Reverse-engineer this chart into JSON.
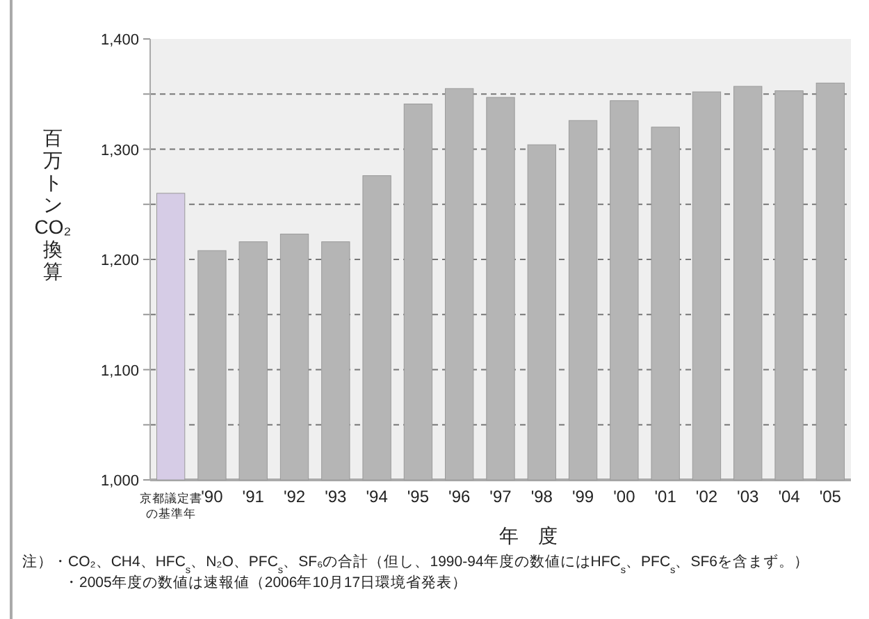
{
  "chart_data": {
    "type": "bar",
    "ylabel": "百万トンCO₂換算",
    "xlabel": "年　度",
    "categories": [
      "京都議定書の基準年",
      "'90",
      "'91",
      "'92",
      "'93",
      "'94",
      "'95",
      "'96",
      "'97",
      "'98",
      "'99",
      "'00",
      "'01",
      "'02",
      "'03",
      "'04",
      "'05"
    ],
    "values": [
      1260,
      1208,
      1216,
      1223,
      1216,
      1276,
      1341,
      1355,
      1347,
      1304,
      1326,
      1344,
      1320,
      1352,
      1357,
      1353,
      1360
    ],
    "colors": [
      "#d6cce6",
      "#b5b5b5",
      "#b5b5b5",
      "#b5b5b5",
      "#b5b5b5",
      "#b5b5b5",
      "#b5b5b5",
      "#b5b5b5",
      "#b5b5b5",
      "#b5b5b5",
      "#b5b5b5",
      "#b5b5b5",
      "#b5b5b5",
      "#b5b5b5",
      "#b5b5b5",
      "#b5b5b5",
      "#b5b5b5"
    ],
    "ylim": [
      1000,
      1400
    ],
    "yticks": [
      {
        "value": 1000,
        "label": "1,000"
      },
      {
        "value": 1050,
        "label": null
      },
      {
        "value": 1100,
        "label": "1,100"
      },
      {
        "value": 1150,
        "label": null
      },
      {
        "value": 1200,
        "label": "1,200"
      },
      {
        "value": 1250,
        "label": null
      },
      {
        "value": 1300,
        "label": "1,300"
      },
      {
        "value": 1350,
        "label": null
      },
      {
        "value": 1400,
        "label": "1,400"
      }
    ],
    "grid": "y",
    "annotations": [
      "注）・CO₂、CH4、HFC$_{s}$、N₂O、PFC$_{s}$、SF₆の合計（但し、1990-94年度の数値にはHFC$_{s}$、PFC$_{s}$、SF6を含まず。）",
      "・2005年度の数値は速報値（2006年10月17日環境省発表）"
    ]
  }
}
